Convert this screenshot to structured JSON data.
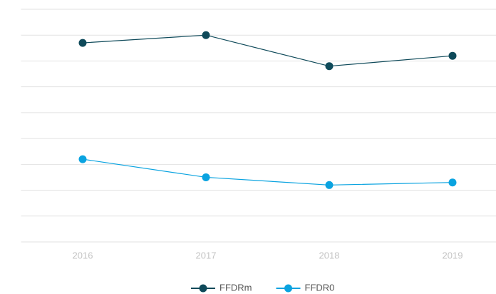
{
  "chart_data": {
    "type": "line",
    "categories": [
      "2016",
      "2017",
      "2018",
      "2019"
    ],
    "series": [
      {
        "name": "FFDRm",
        "color": "#0f4a5a",
        "values": [
          7.7,
          8.0,
          6.8,
          7.2
        ]
      },
      {
        "name": "FFDR0",
        "color": "#0aa3e0",
        "values": [
          3.2,
          2.5,
          2.2,
          2.3
        ]
      }
    ],
    "ylim": [
      0,
      9
    ],
    "yticks": [
      0,
      1,
      2,
      3,
      4,
      5,
      6,
      7,
      8,
      9
    ],
    "grid": true
  }
}
